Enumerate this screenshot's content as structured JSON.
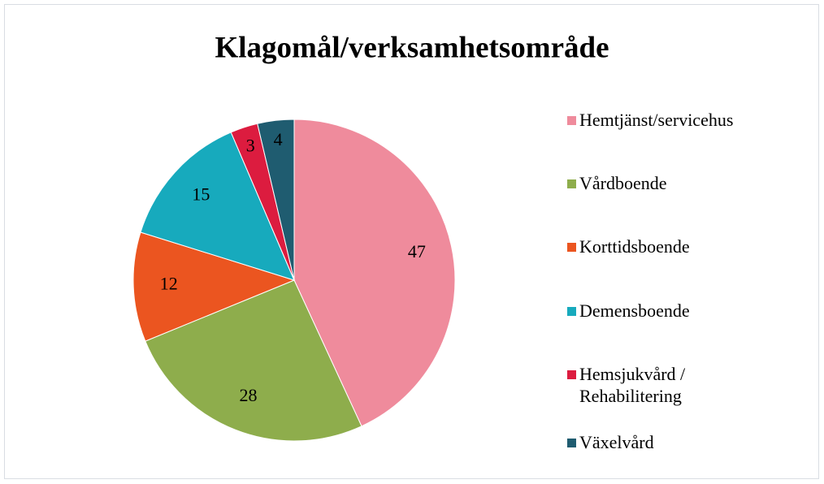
{
  "chart_data": {
    "type": "pie",
    "title": "Klagomål/verksamhetsområde",
    "categories": [
      "Hemtjänst/servicehus",
      "Vårdboende",
      "Korttidsboende",
      "Demensboende",
      "Hemsjukvård / Rehabilitering",
      "Växelvård"
    ],
    "values": [
      47,
      28,
      12,
      15,
      3,
      4
    ],
    "colors": [
      "#ef8b9c",
      "#8ead4c",
      "#eb5520",
      "#17aabd",
      "#dc1c3f",
      "#1f5c70"
    ],
    "legend": "right"
  }
}
